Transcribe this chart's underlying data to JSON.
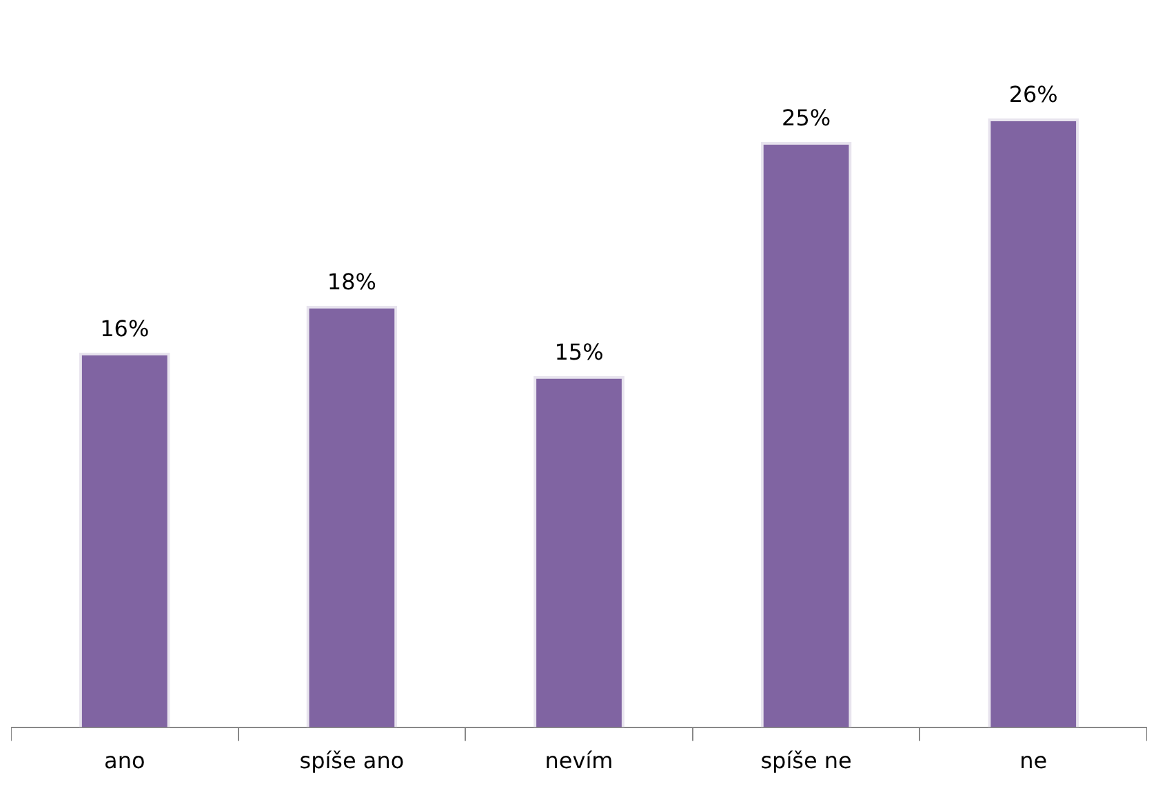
{
  "chart_data": {
    "type": "bar",
    "categories": [
      "ano",
      "spíše ano",
      "nevím",
      "spíše ne",
      "ne"
    ],
    "values": [
      16,
      18,
      15,
      25,
      26
    ],
    "value_labels": [
      "16%",
      "18%",
      "15%",
      "25%",
      "26%"
    ],
    "color": "#8064a2",
    "grid": false,
    "legend": false,
    "tick_labels": "x"
  }
}
